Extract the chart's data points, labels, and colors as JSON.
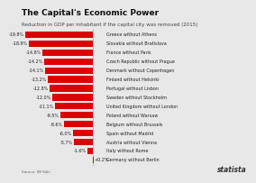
{
  "title": "The Capital's Economic Power",
  "subtitle": "Reduction in GDP per inhabitant if the capital city was removed (2015)",
  "categories": [
    "Greece without Athens",
    "Slovakia without Bratislava",
    "France without Paris",
    "Czech Republic without Prague",
    "Denmark without Copenhagen",
    "Finland without Helsinki",
    "Portugal without Lisbon",
    "Sweden without Stockholm",
    "United Kingdom without London",
    "Poland without Warsaw",
    "Belgium without Brussels",
    "Spain without Madrid",
    "Austria without Vienna",
    "Italy without Rome",
    "Germany without Berlin"
  ],
  "values": [
    -19.8,
    -18.9,
    -14.8,
    -14.2,
    -14.1,
    -13.2,
    -12.8,
    -12.0,
    -11.1,
    -9.5,
    -8.6,
    -6.0,
    -5.7,
    -1.6,
    0.2
  ],
  "bar_color": "#dd0000",
  "background_color": "#e8e8e8",
  "title_fontsize": 6.5,
  "subtitle_fontsize": 4.0,
  "label_fontsize": 3.5,
  "value_fontsize": 3.5,
  "xlim_left": -23,
  "xlim_right": 4,
  "statista_text": "statista",
  "source_text": "Source: IW Köln"
}
